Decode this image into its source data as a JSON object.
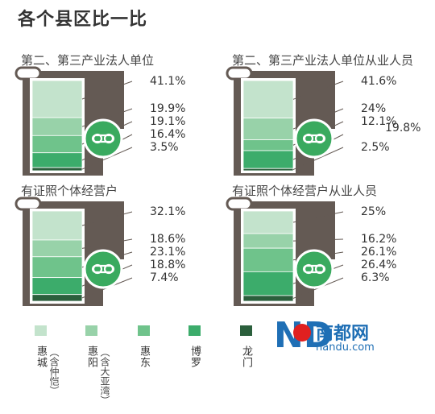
{
  "title": "各个县区比一比",
  "colors": {
    "huicheng": "#c3e3cc",
    "huiyang": "#98d2a9",
    "huidong": "#6fc38b",
    "boluo": "#3cac6b",
    "longmen": "#2b5f3c",
    "frame": "#645a54",
    "badge": "#3aaa5f"
  },
  "legend": [
    {
      "name": "惠城",
      "note": "（含仲恺）",
      "color": "#c3e3cc"
    },
    {
      "name": "惠阳",
      "note": "（含大亚湾）",
      "color": "#98d2a9"
    },
    {
      "name": "惠东",
      "note": "",
      "color": "#6fc38b"
    },
    {
      "name": "博罗",
      "note": "",
      "color": "#3cac6b"
    },
    {
      "name": "龙门",
      "note": "",
      "color": "#2b5f3c"
    }
  ],
  "chart_data": [
    {
      "type": "bar",
      "title": "第二、第三产业法人单位",
      "stacked": true,
      "series": [
        {
          "name": "惠城（含仲恺）",
          "value": 41.1,
          "label": "41.1%"
        },
        {
          "name": "惠阳（含大亚湾）",
          "value": 19.9,
          "label": "19.9%"
        },
        {
          "name": "惠东",
          "value": 19.1,
          "label": "19.1%"
        },
        {
          "name": "博罗",
          "value": 16.4,
          "label": "16.4%"
        },
        {
          "name": "龙门",
          "value": 3.5,
          "label": "3.5%"
        }
      ]
    },
    {
      "type": "bar",
      "title": "第二、第三产业法人单位从业人员",
      "stacked": true,
      "series": [
        {
          "name": "惠城（含仲恺）",
          "value": 41.6,
          "label": "41.6%"
        },
        {
          "name": "惠阳（含大亚湾）",
          "value": 24,
          "label": "24%"
        },
        {
          "name": "惠东",
          "value": 12.1,
          "label": "12.1%"
        },
        {
          "name": "博罗",
          "value": 19.8,
          "label": "19.8%"
        },
        {
          "name": "龙门",
          "value": 2.5,
          "label": "2.5%"
        }
      ]
    },
    {
      "type": "bar",
      "title": "有证照个体经营户",
      "stacked": true,
      "series": [
        {
          "name": "惠城（含仲恺）",
          "value": 32.1,
          "label": "32.1%"
        },
        {
          "name": "惠阳（含大亚湾）",
          "value": 18.6,
          "label": "18.6%"
        },
        {
          "name": "惠东",
          "value": 23.1,
          "label": "23.1%"
        },
        {
          "name": "博罗",
          "value": 18.8,
          "label": "18.8%"
        },
        {
          "name": "龙门",
          "value": 7.4,
          "label": "7.4%"
        }
      ]
    },
    {
      "type": "bar",
      "title": "有证照个体经营户从业人员",
      "stacked": true,
      "series": [
        {
          "name": "惠城（含仲恺）",
          "value": 25,
          "label": "25%"
        },
        {
          "name": "惠阳（含大亚湾）",
          "value": 16.2,
          "label": "16.2%"
        },
        {
          "name": "惠东",
          "value": 26.1,
          "label": "26.1%"
        },
        {
          "name": "博罗",
          "value": 26.4,
          "label": "26.4%"
        },
        {
          "name": "龙门",
          "value": 6.3,
          "label": "6.3%"
        }
      ]
    }
  ],
  "logo": {
    "mark": "ND",
    "name": "南都网",
    "url": "nandu.com"
  }
}
